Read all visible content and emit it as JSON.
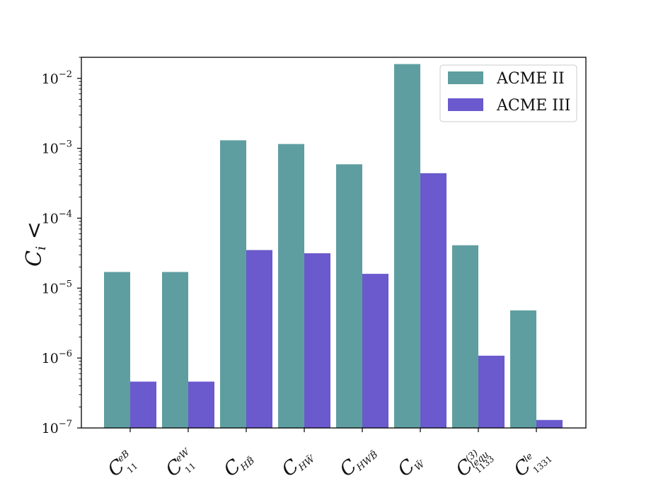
{
  "chart_data": {
    "type": "bar",
    "scale": "log",
    "ylim": [
      1e-07,
      0.02
    ],
    "ylabel": "C_i <",
    "y_ticks": [
      {
        "value": 1e-07,
        "base": "10",
        "exp": "−7"
      },
      {
        "value": 1e-06,
        "base": "10",
        "exp": "−6"
      },
      {
        "value": 1e-05,
        "base": "10",
        "exp": "−5"
      },
      {
        "value": 0.0001,
        "base": "10",
        "exp": "−4"
      },
      {
        "value": 0.001,
        "base": "10",
        "exp": "−3"
      },
      {
        "value": 0.01,
        "base": "10",
        "exp": "−2"
      }
    ],
    "categories": [
      {
        "main": "C",
        "sup": "eB",
        "sub": "11"
      },
      {
        "main": "C",
        "sup": "eW",
        "sub": "11"
      },
      {
        "main": "C",
        "sup": "",
        "sub": "HB̃"
      },
      {
        "main": "C",
        "sup": "",
        "sub": "HW̃"
      },
      {
        "main": "C",
        "sup": "",
        "sub": "HWB̃"
      },
      {
        "main": "C",
        "sup": "",
        "sub": "W̃"
      },
      {
        "main": "C",
        "sup": "(3)",
        "sup2": "lequ",
        "sub": "1133"
      },
      {
        "main": "C",
        "sup": "le",
        "sub": "1331"
      }
    ],
    "series": [
      {
        "name": "ACME II",
        "color": "#5f9ea0",
        "values": [
          1.7e-05,
          1.7e-05,
          0.0013,
          0.00115,
          0.00059,
          0.016,
          4.1e-05,
          4.8e-06
        ]
      },
      {
        "name": "ACME III",
        "color": "#6a5acd",
        "values": [
          4.6e-07,
          4.6e-07,
          3.5e-05,
          3.15e-05,
          1.6e-05,
          0.00044,
          1.08e-06,
          1.3e-07
        ]
      }
    ],
    "legend": {
      "position": "top-right"
    },
    "grid": false
  }
}
